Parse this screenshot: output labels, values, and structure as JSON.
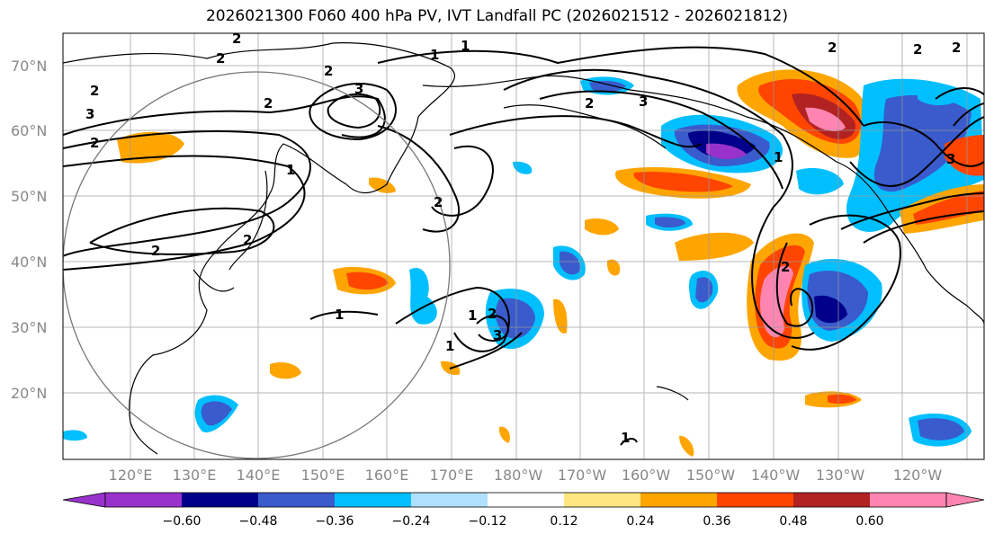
{
  "title": "2026021300 F060 400 hPa PV, IVT Landfall PC (2026021512 - 2026021812)",
  "lat_labels": [
    "70°N",
    "60°N",
    "50°N",
    "40°N",
    "30°N",
    "20°N"
  ],
  "lon_labels": [
    "120°E",
    "130°E",
    "140°E",
    "150°E",
    "160°E",
    "170°E",
    "180°W",
    "170°W",
    "160°W",
    "150°W",
    "140°W",
    "130°W",
    "120°W"
  ],
  "colorbar": {
    "ticks": [
      "−0.60",
      "−0.48",
      "−0.36",
      "−0.24",
      "−0.12",
      "0.12",
      "0.24",
      "0.36",
      "0.48",
      "0.60"
    ],
    "colors": [
      "#9932cc",
      "#00008b",
      "#3a5bcc",
      "#00bfff",
      "#b0e0ff",
      "#ffffff",
      "#ffe680",
      "#ffa500",
      "#ff4500",
      "#b22222",
      "#ff85b0",
      "#ff85b0"
    ]
  },
  "contour_labels": [
    "2",
    "2",
    "3",
    "2",
    "1",
    "1",
    "2",
    "3",
    "2",
    "1",
    "2",
    "2",
    "2",
    "1",
    "2",
    "2",
    "3",
    "2",
    "2",
    "1",
    "1",
    "2",
    "1",
    "3",
    "2",
    "2",
    "3",
    "1"
  ],
  "colors": {
    "positive": "#ff4500",
    "negative": "#3a5bcc"
  }
}
